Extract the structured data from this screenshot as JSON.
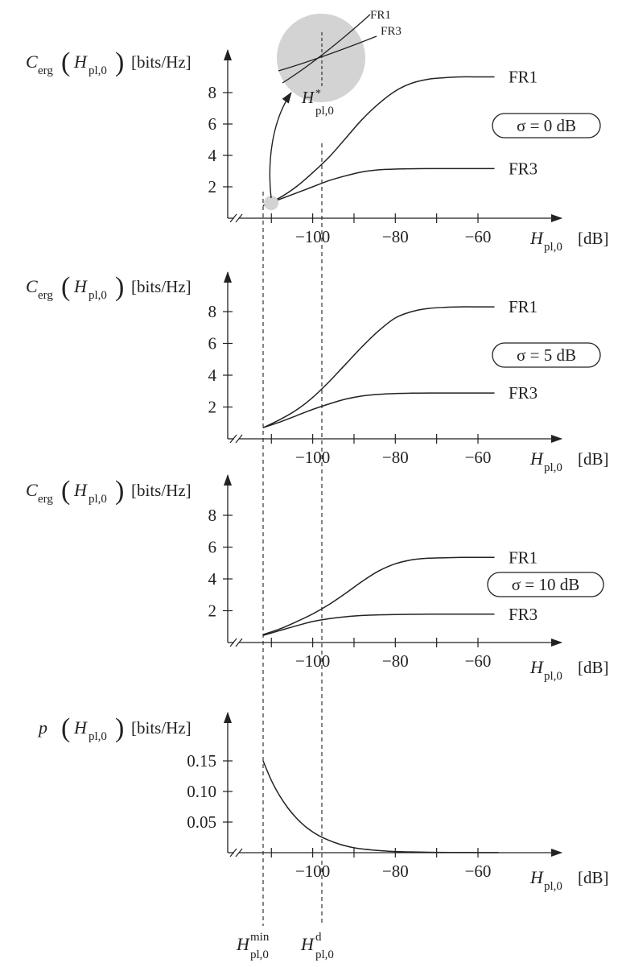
{
  "colors": {
    "ink": "#222222",
    "highlight": "#d3d3d3",
    "background": "#ffffff"
  },
  "markers": {
    "h_min": {
      "x": -112,
      "sub": "pl,0",
      "sup": "min",
      "base": "H"
    },
    "h_d": {
      "x": -97,
      "sub": "pl,0",
      "sup": "d",
      "base": "H"
    }
  },
  "inset": {
    "label_base": "H",
    "label_sup": "*",
    "label_sub": "pl,0",
    "series_labels": [
      "FR1",
      "FR3"
    ]
  },
  "chart_data": [
    {
      "type": "line",
      "ylabel": {
        "func": "C",
        "func_sub": "erg",
        "arg_base": "H",
        "arg_sub": "pl,0",
        "unit": "[bits/Hz]"
      },
      "xlabel": {
        "base": "H",
        "sub": "pl,0",
        "unit": "[dB]"
      },
      "xlim": [
        -112,
        -50
      ],
      "ylim": [
        0,
        9.5
      ],
      "xticks": [
        -100,
        -80,
        -60
      ],
      "yticks": [
        2,
        4,
        6,
        8
      ],
      "ytick_labels": [
        "2",
        "4",
        "6",
        "8"
      ],
      "xtick_labels": [
        "−100",
        "−80",
        "−60"
      ],
      "annotation": "σ = 0 dB",
      "series": [
        {
          "name": "FR1",
          "x": [
            -112,
            -108,
            -104,
            -100,
            -96,
            -92,
            -88,
            -84,
            -80,
            -76,
            -72,
            -68,
            -64,
            -60,
            -56
          ],
          "y": [
            0.8,
            1.3,
            2.0,
            2.9,
            3.9,
            5.1,
            6.3,
            7.3,
            8.1,
            8.6,
            8.85,
            8.95,
            9.0,
            9.0,
            9.0
          ]
        },
        {
          "name": "FR3",
          "x": [
            -112,
            -108,
            -104,
            -100,
            -96,
            -92,
            -88,
            -84,
            -80,
            -76,
            -72,
            -68,
            -64,
            -60,
            -56
          ],
          "y": [
            0.8,
            1.2,
            1.6,
            2.0,
            2.4,
            2.7,
            2.95,
            3.08,
            3.13,
            3.15,
            3.16,
            3.16,
            3.16,
            3.16,
            3.16
          ]
        }
      ]
    },
    {
      "type": "line",
      "ylabel": {
        "func": "C",
        "func_sub": "erg",
        "arg_base": "H",
        "arg_sub": "pl,0",
        "unit": "[bits/Hz]"
      },
      "xlabel": {
        "base": "H",
        "sub": "pl,0",
        "unit": "[dB]"
      },
      "xlim": [
        -112,
        -50
      ],
      "ylim": [
        0,
        9.5
      ],
      "xticks": [
        -100,
        -80,
        -60
      ],
      "yticks": [
        2,
        4,
        6,
        8
      ],
      "ytick_labels": [
        "2",
        "4",
        "6",
        "8"
      ],
      "xtick_labels": [
        "−100",
        "−80",
        "−60"
      ],
      "annotation": "σ = 5 dB",
      "series": [
        {
          "name": "FR1",
          "x": [
            -112,
            -108,
            -104,
            -100,
            -96,
            -92,
            -88,
            -84,
            -80,
            -76,
            -72,
            -68,
            -64,
            -60,
            -56
          ],
          "y": [
            0.7,
            1.2,
            1.8,
            2.6,
            3.6,
            4.7,
            5.8,
            6.8,
            7.6,
            8.0,
            8.2,
            8.27,
            8.3,
            8.3,
            8.3
          ]
        },
        {
          "name": "FR3",
          "x": [
            -112,
            -108,
            -104,
            -100,
            -96,
            -92,
            -88,
            -84,
            -80,
            -76,
            -72,
            -68,
            -64,
            -60,
            -56
          ],
          "y": [
            0.7,
            1.05,
            1.45,
            1.85,
            2.2,
            2.5,
            2.7,
            2.8,
            2.85,
            2.87,
            2.88,
            2.88,
            2.88,
            2.88,
            2.88
          ]
        }
      ]
    },
    {
      "type": "line",
      "ylabel": {
        "func": "C",
        "func_sub": "erg",
        "arg_base": "H",
        "arg_sub": "pl,0",
        "unit": "[bits/Hz]"
      },
      "xlabel": {
        "base": "H",
        "sub": "pl,0",
        "unit": "[dB]"
      },
      "xlim": [
        -112,
        -50
      ],
      "ylim": [
        0,
        9.5
      ],
      "xticks": [
        -100,
        -80,
        -60
      ],
      "yticks": [
        2,
        4,
        6,
        8
      ],
      "ytick_labels": [
        "2",
        "4",
        "6",
        "8"
      ],
      "xtick_labels": [
        "−100",
        "−80",
        "−60"
      ],
      "annotation": "σ = 10 dB",
      "series": [
        {
          "name": "FR1",
          "x": [
            -112,
            -108,
            -104,
            -100,
            -96,
            -92,
            -88,
            -84,
            -80,
            -76,
            -72,
            -68,
            -64,
            -60,
            -56
          ],
          "y": [
            0.5,
            0.85,
            1.3,
            1.8,
            2.4,
            3.1,
            3.85,
            4.5,
            4.95,
            5.2,
            5.3,
            5.33,
            5.35,
            5.35,
            5.35
          ]
        },
        {
          "name": "FR3",
          "x": [
            -112,
            -108,
            -104,
            -100,
            -96,
            -92,
            -88,
            -84,
            -80,
            -76,
            -72,
            -68,
            -64,
            -60,
            -56
          ],
          "y": [
            0.45,
            0.75,
            1.05,
            1.32,
            1.5,
            1.62,
            1.7,
            1.74,
            1.76,
            1.77,
            1.78,
            1.78,
            1.78,
            1.78,
            1.78
          ]
        }
      ]
    },
    {
      "type": "line",
      "ylabel": {
        "func": "p",
        "func_sub": "",
        "arg_base": "H",
        "arg_sub": "pl,0",
        "unit": "[bits/Hz]"
      },
      "xlabel": {
        "base": "H",
        "sub": "pl,0",
        "unit": "[dB]"
      },
      "xlim": [
        -112,
        -50
      ],
      "ylim": [
        0,
        0.18
      ],
      "xticks": [
        -100,
        -80,
        -60
      ],
      "yticks": [
        0.05,
        0.1,
        0.15
      ],
      "ytick_labels": [
        "0.05",
        "0.10",
        "0.15"
      ],
      "xtick_labels": [
        "−100",
        "−80",
        "−60"
      ],
      "annotation": "",
      "series": [
        {
          "name": "",
          "x": [
            -112,
            -110,
            -108,
            -106,
            -104,
            -102,
            -100,
            -98,
            -96,
            -94,
            -92,
            -90,
            -88,
            -85,
            -82,
            -78,
            -74,
            -70,
            -66,
            -62,
            -58,
            -55
          ],
          "y": [
            0.15,
            0.118,
            0.093,
            0.073,
            0.057,
            0.044,
            0.034,
            0.026,
            0.02,
            0.015,
            0.011,
            0.008,
            0.006,
            0.004,
            0.0025,
            0.0015,
            0.0009,
            0.0005,
            0.0003,
            0.0002,
            0.0001,
            0.0001
          ]
        }
      ]
    }
  ]
}
